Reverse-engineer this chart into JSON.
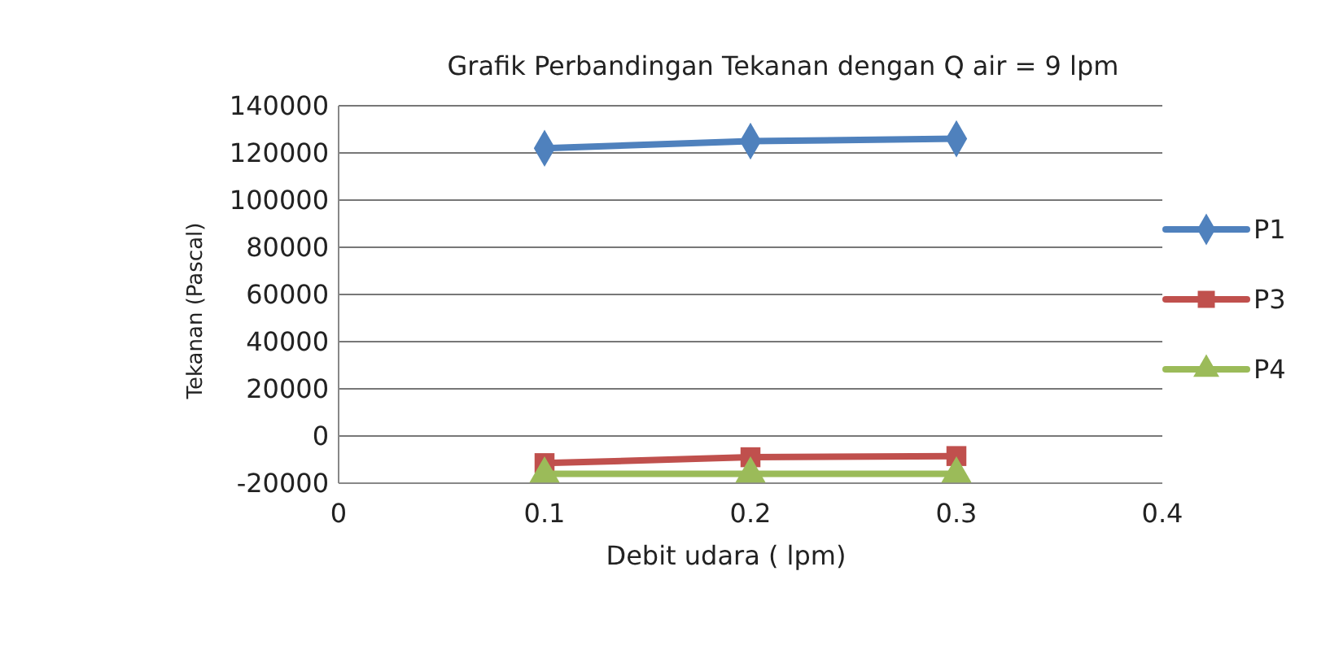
{
  "chart_data": {
    "type": "line",
    "title": "Grafik Perbandingan Tekanan dengan Q air = 9 lpm",
    "xlabel": "Debit udara ( lpm)",
    "ylabel": "Tekanan (Pascal)",
    "x": [
      0.1,
      0.2,
      0.3
    ],
    "series": [
      {
        "name": "P1",
        "color": "#4f81bd",
        "marker": "diamond",
        "values": [
          122000,
          125000,
          126000
        ]
      },
      {
        "name": "P3",
        "color": "#c0504d",
        "marker": "square",
        "values": [
          -11500,
          -9000,
          -8500
        ]
      },
      {
        "name": "P4",
        "color": "#9bbb59",
        "marker": "triangle",
        "values": [
          -16000,
          -16000,
          -16000
        ]
      }
    ],
    "xlim": [
      0,
      0.4
    ],
    "xticks": [
      0,
      0.1,
      0.2,
      0.3,
      0.4
    ],
    "ylim": [
      -20000,
      140000
    ],
    "yticks": [
      -20000,
      0,
      20000,
      40000,
      60000,
      80000,
      100000,
      120000,
      140000
    ],
    "grid": "y",
    "legend": "right"
  }
}
